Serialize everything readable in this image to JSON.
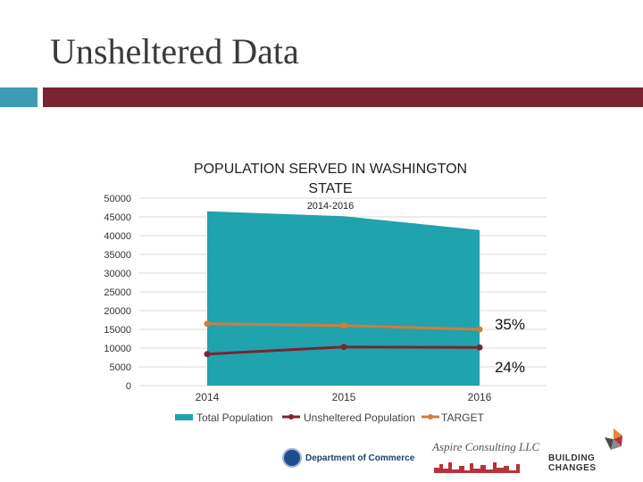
{
  "slide": {
    "title": "Unsheltered Data"
  },
  "chart_data": {
    "type": "area",
    "title": "POPULATION SERVED IN WASHINGTON STATE",
    "subtitle": "2014-2016",
    "categories": [
      "2014",
      "2015",
      "2016"
    ],
    "ylim": [
      0,
      50000
    ],
    "y_ticks": [
      "0",
      "5000",
      "10000",
      "15000",
      "20000",
      "25000",
      "30000",
      "35000",
      "40000",
      "45000",
      "50000"
    ],
    "series": [
      {
        "name": "Total Population",
        "kind": "area",
        "color": "#20a3ad",
        "values": [
          46500,
          45200,
          41500
        ]
      },
      {
        "name": "Unsheltered Population",
        "kind": "line",
        "color": "#7b2431",
        "values": [
          8400,
          10300,
          10200
        ]
      },
      {
        "name": "TARGET",
        "kind": "line",
        "color": "#d17b3c",
        "values": [
          16500,
          16000,
          15000
        ]
      }
    ],
    "annotations": [
      "35%",
      "24%"
    ],
    "grid": true,
    "legend": "bottom"
  },
  "logos": {
    "commerce": "Department of Commerce",
    "aspire": "Aspire Consulting LLC",
    "building_changes_line1": "BUILDING",
    "building_changes_line2": "CHANGES"
  }
}
